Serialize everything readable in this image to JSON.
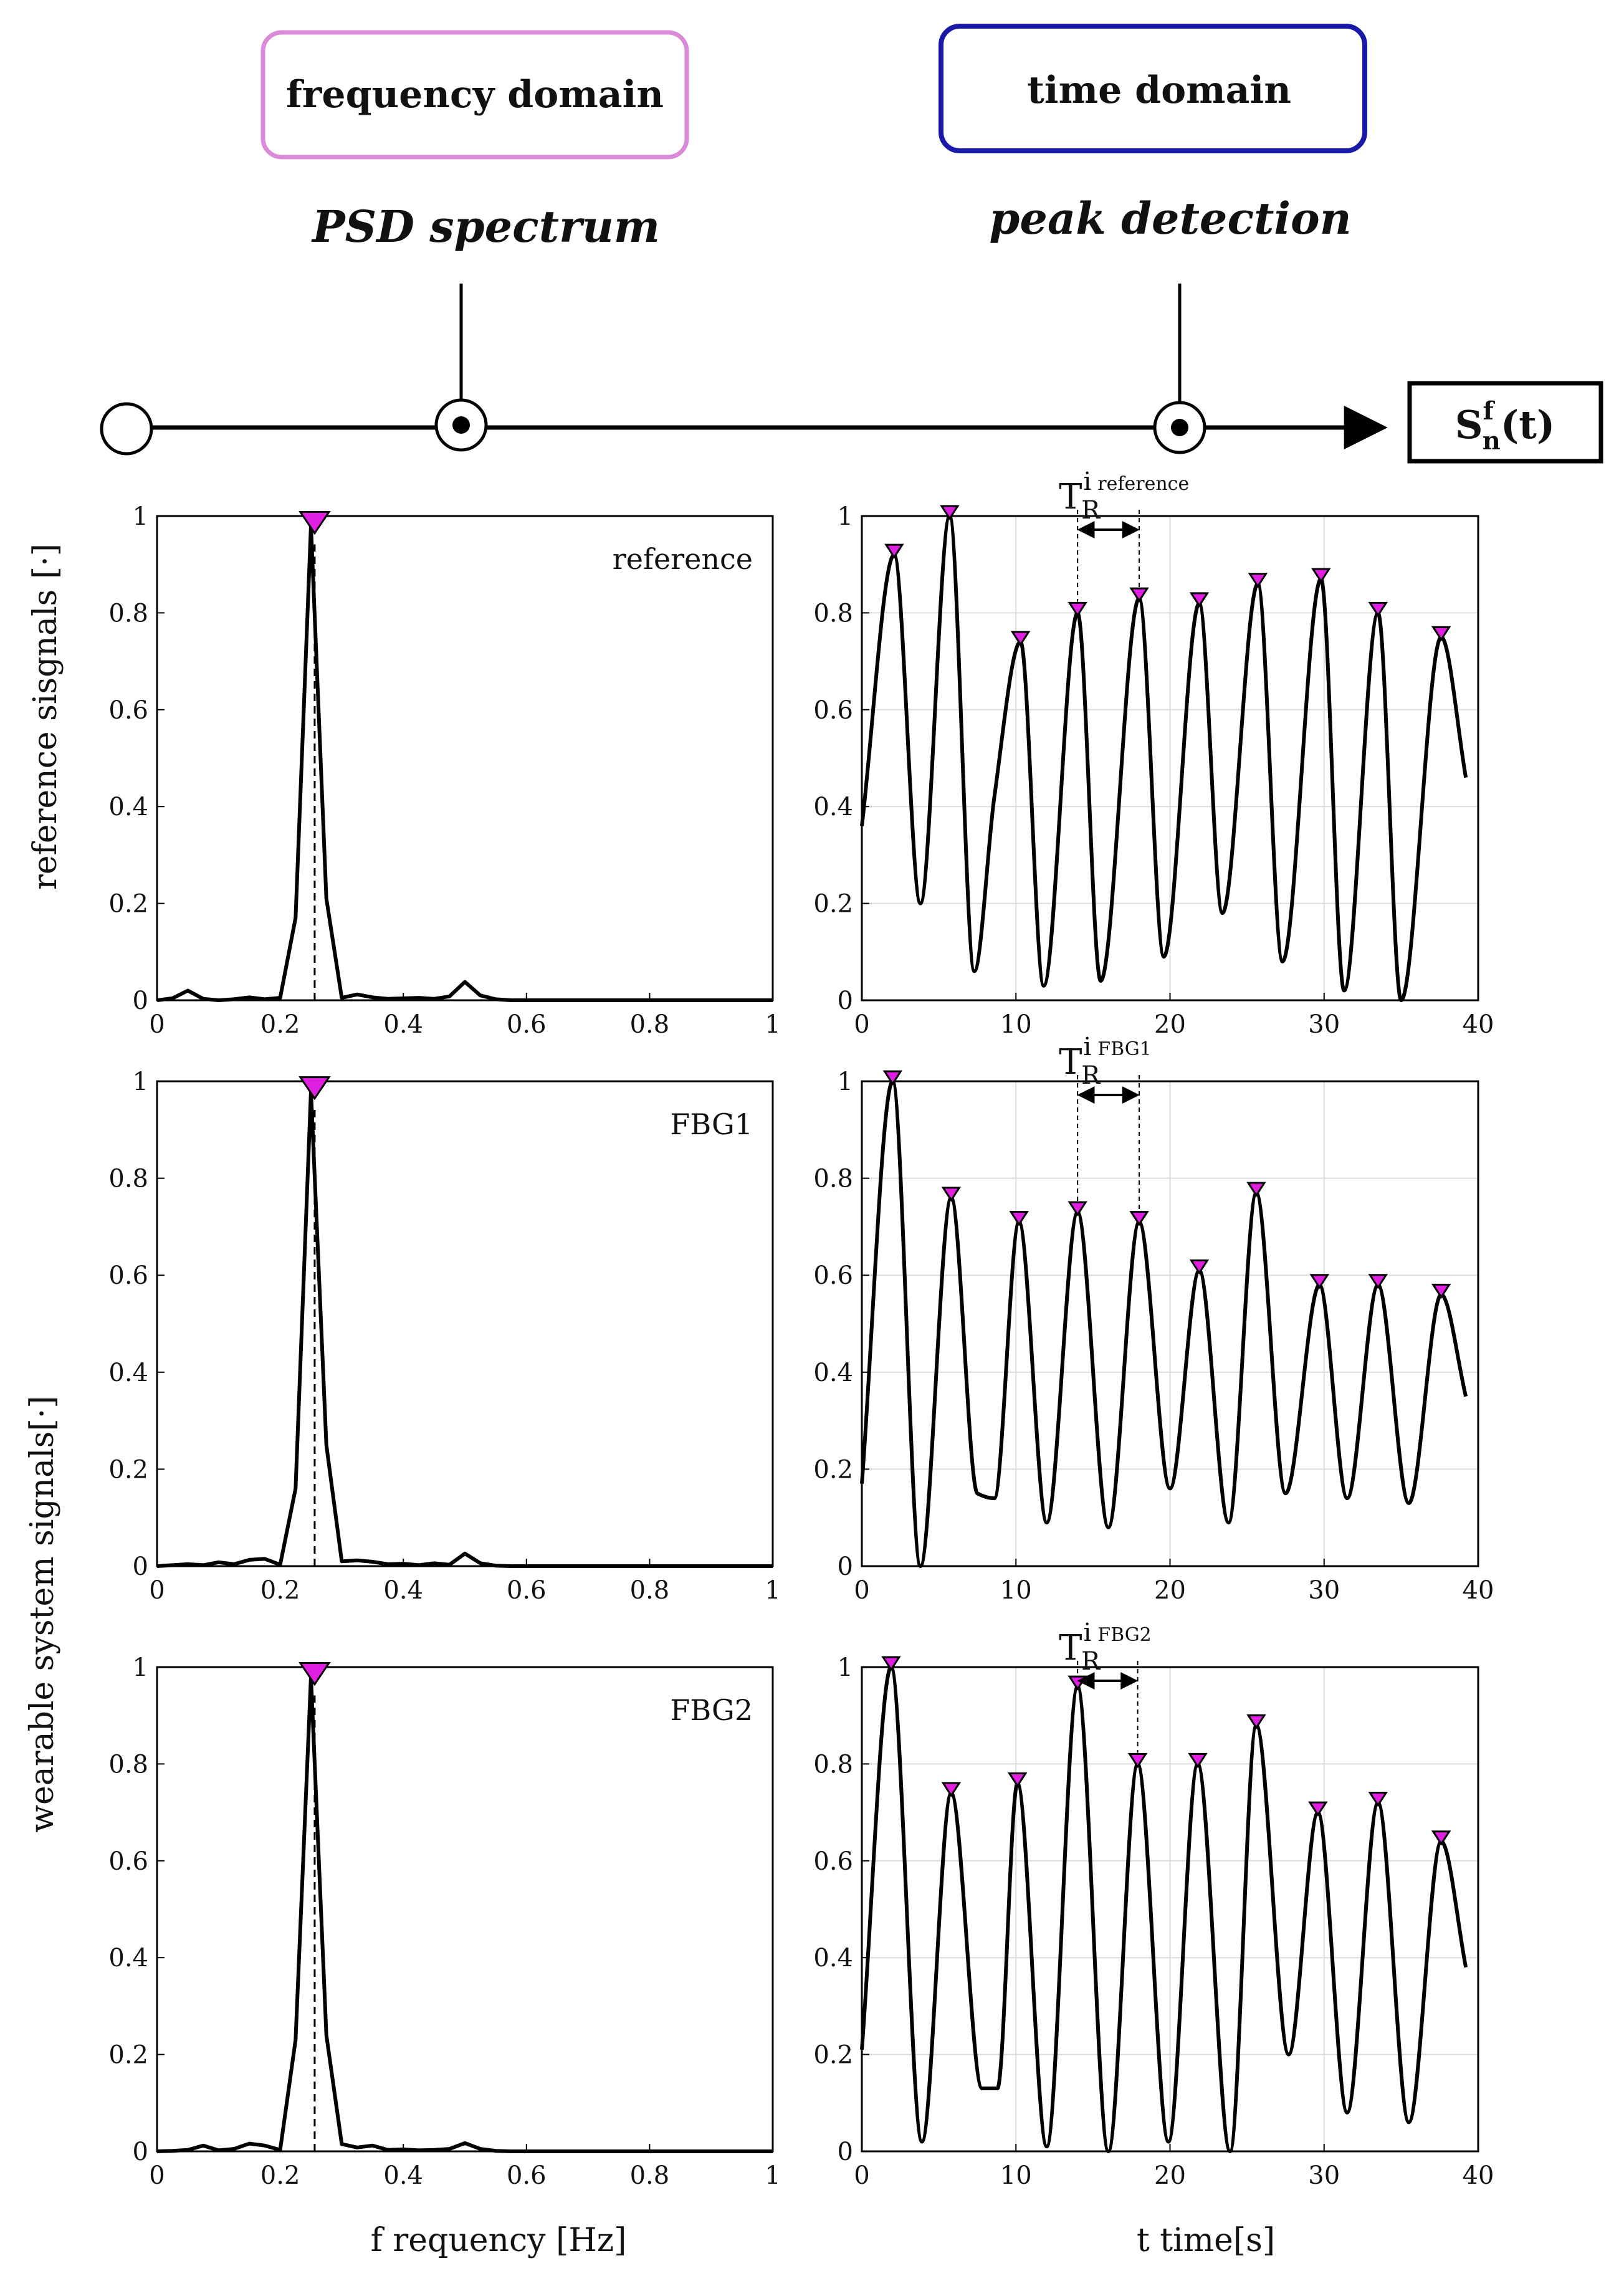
{
  "pipeline": {
    "boxes": [
      {
        "key": "frequency",
        "label": "frequency domain",
        "border_color": "#d98ad9"
      },
      {
        "key": "time",
        "label": "time domain",
        "border_color": "#1a1aa8"
      }
    ],
    "stages": [
      {
        "key": "psd",
        "label": "PSD spectrum"
      },
      {
        "key": "peak",
        "label": "peak detection"
      }
    ],
    "output": {
      "base": "S",
      "superscript": "f",
      "subscript": "n",
      "argument": "(t)"
    }
  },
  "axis_titles": {
    "psd_x": "f requency [Hz]",
    "time_x": "t time[s]",
    "reference_y": "reference sisgnals [·]",
    "wearable_y": "wearable system signals[·]"
  },
  "marker_color": "#e11fe1",
  "chart_data": [
    {
      "type": "line",
      "id": "psd-reference",
      "row": 0,
      "col": 0,
      "label": "reference",
      "xlim": [
        0,
        1
      ],
      "ylim": [
        0,
        1
      ],
      "xticks": [
        0,
        0.2,
        0.4,
        0.6,
        0.8,
        1
      ],
      "xtick_labels": [
        "0",
        "0.2",
        "0.4",
        "0.6",
        "0.8",
        "1"
      ],
      "yticks": [
        0,
        0.2,
        0.4,
        0.6,
        0.8,
        1
      ],
      "ytick_labels": [
        "0",
        "0.2",
        "0.4",
        "0.6",
        "0.8",
        "1"
      ],
      "series": [
        {
          "name": "reference PSD",
          "x": [
            0,
            0.025,
            0.05,
            0.075,
            0.1,
            0.125,
            0.15,
            0.175,
            0.2,
            0.225,
            0.25,
            0.275,
            0.3,
            0.325,
            0.35,
            0.375,
            0.4,
            0.425,
            0.45,
            0.475,
            0.5,
            0.525,
            0.55,
            0.575,
            0.6,
            0.7,
            0.8,
            0.9,
            1.0
          ],
          "y": [
            0,
            0.004,
            0.02,
            0.003,
            0,
            0.002,
            0.006,
            0.002,
            0.005,
            0.17,
            0.98,
            0.21,
            0.005,
            0.012,
            0.006,
            0.003,
            0.004,
            0.005,
            0.003,
            0.008,
            0.038,
            0.01,
            0.002,
            0,
            0,
            0,
            0,
            0,
            0
          ]
        }
      ],
      "peaks": [
        {
          "x": 0.256,
          "y": 0.98
        }
      ],
      "peak_line_x": 0.256
    },
    {
      "type": "line",
      "id": "time-reference",
      "row": 0,
      "col": 1,
      "label": "",
      "xlim": [
        0,
        40
      ],
      "ylim": [
        0,
        1
      ],
      "xticks": [
        0,
        10,
        20,
        30,
        40
      ],
      "xtick_labels": [
        "0",
        "10",
        "20",
        "30",
        "40"
      ],
      "yticks": [
        0,
        0.2,
        0.4,
        0.6,
        0.8,
        1
      ],
      "ytick_labels": [
        "0",
        "0.2",
        "0.4",
        "0.6",
        "0.8",
        "1"
      ],
      "series": [
        {
          "name": "reference signal",
          "x": [
            0,
            2.1,
            3.8,
            5.7,
            7.3,
            8.6,
            10.3,
            11.8,
            14.0,
            15.5,
            18.0,
            19.6,
            21.9,
            23.4,
            25.7,
            27.3,
            29.8,
            31.3,
            33.5,
            35.0,
            37.6,
            39.2
          ],
          "y": [
            0.36,
            0.92,
            0.2,
            1.0,
            0.06,
            0.42,
            0.74,
            0.03,
            0.8,
            0.04,
            0.83,
            0.09,
            0.82,
            0.18,
            0.86,
            0.08,
            0.87,
            0.02,
            0.8,
            0.0,
            0.75,
            0.46
          ]
        }
      ],
      "peaks": [
        {
          "x": 2.1,
          "y": 0.92
        },
        {
          "x": 5.7,
          "y": 1.0
        },
        {
          "x": 10.3,
          "y": 0.74
        },
        {
          "x": 14.0,
          "y": 0.8
        },
        {
          "x": 18.0,
          "y": 0.83
        },
        {
          "x": 21.9,
          "y": 0.82
        },
        {
          "x": 25.7,
          "y": 0.86
        },
        {
          "x": 29.8,
          "y": 0.87
        },
        {
          "x": 33.5,
          "y": 0.8
        },
        {
          "x": 37.6,
          "y": 0.75
        }
      ],
      "period": {
        "from": 14.0,
        "to": 18.0,
        "symbol": "T",
        "sub": "R",
        "sup": "i",
        "sup_tag": "reference"
      }
    },
    {
      "type": "line",
      "id": "psd-fbg1",
      "row": 1,
      "col": 0,
      "label": "FBG1",
      "xlim": [
        0,
        1
      ],
      "ylim": [
        0,
        1
      ],
      "xticks": [
        0,
        0.2,
        0.4,
        0.6,
        0.8,
        1
      ],
      "xtick_labels": [
        "0",
        "0.2",
        "0.4",
        "0.6",
        "0.8",
        "1"
      ],
      "yticks": [
        0,
        0.2,
        0.4,
        0.6,
        0.8,
        1
      ],
      "ytick_labels": [
        "0",
        "0.2",
        "0.4",
        "0.6",
        "0.8",
        "1"
      ],
      "series": [
        {
          "name": "FBG1 PSD",
          "x": [
            0,
            0.025,
            0.05,
            0.075,
            0.1,
            0.125,
            0.15,
            0.175,
            0.2,
            0.225,
            0.25,
            0.275,
            0.3,
            0.325,
            0.35,
            0.375,
            0.4,
            0.425,
            0.45,
            0.475,
            0.5,
            0.525,
            0.55,
            0.575,
            0.6,
            0.7,
            0.8,
            0.9,
            1.0
          ],
          "y": [
            0,
            0.002,
            0.004,
            0.002,
            0.008,
            0.004,
            0.013,
            0.015,
            0.003,
            0.16,
            0.98,
            0.25,
            0.01,
            0.012,
            0.009,
            0.004,
            0.005,
            0.002,
            0.006,
            0.003,
            0.026,
            0.006,
            0.001,
            0,
            0,
            0,
            0,
            0,
            0
          ]
        }
      ],
      "peaks": [
        {
          "x": 0.256,
          "y": 0.98
        }
      ],
      "peak_line_x": 0.256
    },
    {
      "type": "line",
      "id": "time-fbg1",
      "row": 1,
      "col": 1,
      "label": "",
      "xlim": [
        0,
        40
      ],
      "ylim": [
        0,
        1
      ],
      "xticks": [
        0,
        10,
        20,
        30,
        40
      ],
      "xtick_labels": [
        "0",
        "10",
        "20",
        "30",
        "40"
      ],
      "yticks": [
        0,
        0.2,
        0.4,
        0.6,
        0.8,
        1
      ],
      "ytick_labels": [
        "0",
        "0.2",
        "0.4",
        "0.6",
        "0.8",
        "1"
      ],
      "series": [
        {
          "name": "FBG1 signal",
          "x": [
            0,
            2.0,
            3.8,
            5.8,
            7.5,
            8.6,
            10.2,
            12.0,
            14.0,
            16.0,
            18.0,
            20.0,
            21.9,
            23.8,
            25.6,
            27.5,
            29.7,
            31.5,
            33.5,
            35.5,
            37.6,
            39.2
          ],
          "y": [
            0.17,
            1.0,
            0.0,
            0.76,
            0.15,
            0.14,
            0.71,
            0.09,
            0.73,
            0.08,
            0.71,
            0.16,
            0.61,
            0.09,
            0.77,
            0.15,
            0.58,
            0.14,
            0.58,
            0.13,
            0.56,
            0.35
          ]
        }
      ],
      "peaks": [
        {
          "x": 2.0,
          "y": 1.0
        },
        {
          "x": 5.8,
          "y": 0.76
        },
        {
          "x": 10.2,
          "y": 0.71
        },
        {
          "x": 14.0,
          "y": 0.73
        },
        {
          "x": 18.0,
          "y": 0.71
        },
        {
          "x": 21.9,
          "y": 0.61
        },
        {
          "x": 25.6,
          "y": 0.77
        },
        {
          "x": 29.7,
          "y": 0.58
        },
        {
          "x": 33.5,
          "y": 0.58
        },
        {
          "x": 37.6,
          "y": 0.56
        }
      ],
      "period": {
        "from": 14.0,
        "to": 18.0,
        "symbol": "T",
        "sub": "R",
        "sup": "i",
        "sup_tag": "FBG1"
      }
    },
    {
      "type": "line",
      "id": "psd-fbg2",
      "row": 2,
      "col": 0,
      "label": "FBG2",
      "xlim": [
        0,
        1
      ],
      "ylim": [
        0,
        1
      ],
      "xticks": [
        0,
        0.2,
        0.4,
        0.6,
        0.8,
        1
      ],
      "xtick_labels": [
        "0",
        "0.2",
        "0.4",
        "0.6",
        "0.8",
        "1"
      ],
      "yticks": [
        0,
        0.2,
        0.4,
        0.6,
        0.8,
        1
      ],
      "ytick_labels": [
        "0",
        "0.2",
        "0.4",
        "0.6",
        "0.8",
        "1"
      ],
      "series": [
        {
          "name": "FBG2 PSD",
          "x": [
            0,
            0.025,
            0.05,
            0.075,
            0.1,
            0.125,
            0.15,
            0.175,
            0.2,
            0.225,
            0.25,
            0.275,
            0.3,
            0.325,
            0.35,
            0.375,
            0.4,
            0.425,
            0.45,
            0.475,
            0.5,
            0.525,
            0.55,
            0.575,
            0.6,
            0.7,
            0.8,
            0.9,
            1.0
          ],
          "y": [
            0,
            0.001,
            0.003,
            0.012,
            0.002,
            0.005,
            0.016,
            0.012,
            0.003,
            0.23,
            0.98,
            0.24,
            0.015,
            0.008,
            0.012,
            0.003,
            0.004,
            0.002,
            0.003,
            0.005,
            0.017,
            0.005,
            0.001,
            0,
            0,
            0,
            0,
            0,
            0
          ]
        }
      ],
      "peaks": [
        {
          "x": 0.256,
          "y": 0.98
        }
      ],
      "peak_line_x": 0.256
    },
    {
      "type": "line",
      "id": "time-fbg2",
      "row": 2,
      "col": 1,
      "label": "",
      "xlim": [
        0,
        40
      ],
      "ylim": [
        0,
        1
      ],
      "xticks": [
        0,
        10,
        20,
        30,
        40
      ],
      "xtick_labels": [
        "0",
        "10",
        "20",
        "30",
        "40"
      ],
      "yticks": [
        0,
        0.2,
        0.4,
        0.6,
        0.8,
        1
      ],
      "ytick_labels": [
        "0",
        "0.2",
        "0.4",
        "0.6",
        "0.8",
        "1"
      ],
      "series": [
        {
          "name": "FBG2 signal",
          "x": [
            0,
            1.9,
            3.9,
            5.8,
            7.8,
            8.8,
            10.1,
            12.0,
            14.0,
            16.0,
            17.9,
            19.9,
            21.8,
            23.9,
            25.6,
            27.7,
            29.6,
            31.5,
            33.5,
            35.5,
            37.6,
            39.2
          ],
          "y": [
            0.21,
            1.0,
            0.02,
            0.74,
            0.13,
            0.13,
            0.76,
            0.01,
            0.96,
            0.0,
            0.8,
            0.02,
            0.8,
            0.0,
            0.88,
            0.2,
            0.7,
            0.08,
            0.72,
            0.06,
            0.64,
            0.38
          ]
        }
      ],
      "peaks": [
        {
          "x": 1.9,
          "y": 1.0
        },
        {
          "x": 5.8,
          "y": 0.74
        },
        {
          "x": 10.1,
          "y": 0.76
        },
        {
          "x": 14.0,
          "y": 0.96
        },
        {
          "x": 17.9,
          "y": 0.8
        },
        {
          "x": 21.8,
          "y": 0.8
        },
        {
          "x": 25.6,
          "y": 0.88
        },
        {
          "x": 29.6,
          "y": 0.7
        },
        {
          "x": 33.5,
          "y": 0.72
        },
        {
          "x": 37.6,
          "y": 0.64
        }
      ],
      "period": {
        "from": 14.0,
        "to": 17.9,
        "symbol": "T",
        "sub": "R",
        "sup": "i",
        "sup_tag": "FBG2"
      }
    }
  ]
}
